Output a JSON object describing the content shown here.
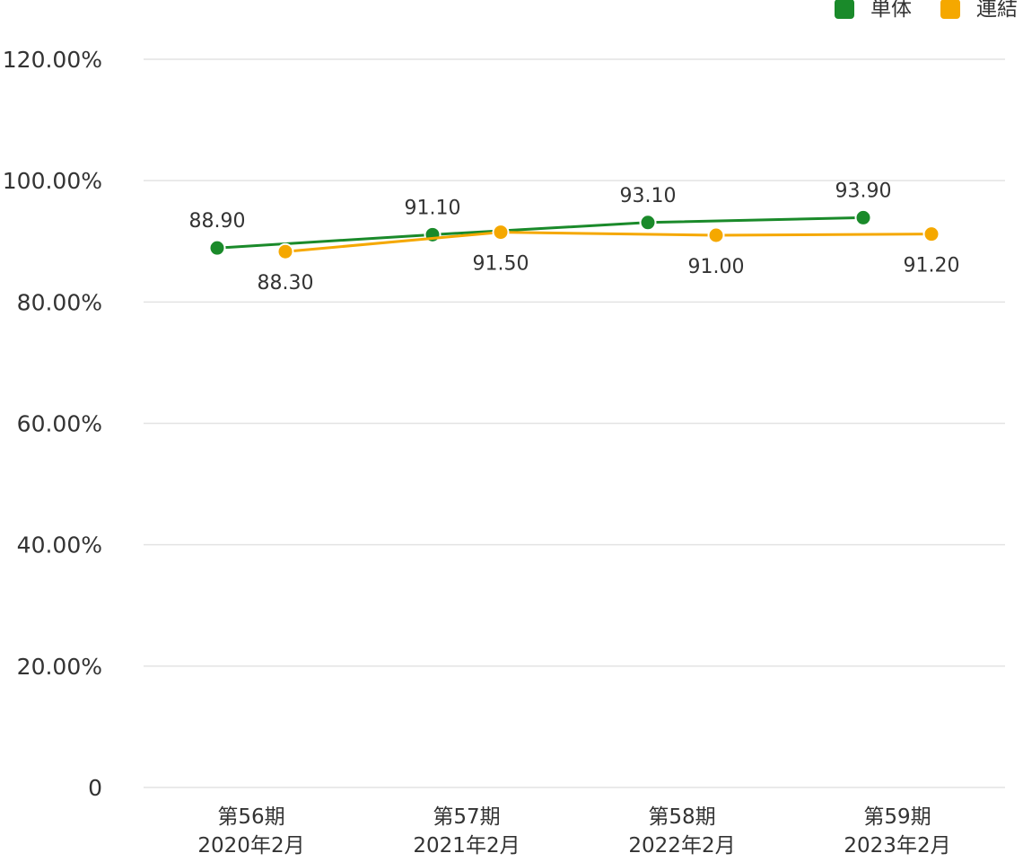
{
  "chart_data": {
    "type": "line",
    "categories": [
      [
        "第56期",
        "2020年2月"
      ],
      [
        "第57期",
        "2021年2月"
      ],
      [
        "第58期",
        "2022年2月"
      ],
      [
        "第59期",
        "2023年2月"
      ]
    ],
    "series": [
      {
        "name": "単体",
        "color": "#1a8a2a",
        "values": [
          88.9,
          91.1,
          93.1,
          93.9
        ],
        "labels": [
          "88.90",
          "91.10",
          "93.10",
          "93.90"
        ]
      },
      {
        "name": "連結",
        "color": "#f5a800",
        "values": [
          88.3,
          91.5,
          91.0,
          91.2
        ],
        "labels": [
          "88.30",
          "91.50",
          "91.00",
          "91.20"
        ]
      }
    ],
    "y_ticks": [
      {
        "value": 0,
        "label": "0"
      },
      {
        "value": 20,
        "label": "20.00%"
      },
      {
        "value": 40,
        "label": "40.00%"
      },
      {
        "value": 60,
        "label": "60.00%"
      },
      {
        "value": 80,
        "label": "80.00%"
      },
      {
        "value": 100,
        "label": "100.00%"
      },
      {
        "value": 120,
        "label": "120.00%"
      }
    ],
    "ylim": [
      0,
      120
    ],
    "grid": true,
    "legend_position": "top-right"
  }
}
